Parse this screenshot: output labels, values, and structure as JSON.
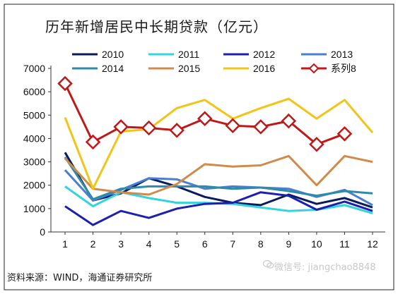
{
  "title": "历年新增居民中长期贷款（亿元）",
  "source": "资料来源：WIND，海通证券研究所",
  "watermark": "微信号: jiangchao8848",
  "colors": {
    "s2010": "#0a1a5c",
    "s2011": "#33d4e0",
    "s2012": "#1c20b0",
    "s2013": "#4a7fd0",
    "s2014": "#2f8aa8",
    "s2015": "#d08b4c",
    "s2016": "#f2c418",
    "s8": "#c01818"
  },
  "chart_data": {
    "type": "line",
    "categories": [
      "1",
      "2",
      "3",
      "4",
      "5",
      "6",
      "7",
      "8",
      "9",
      "10",
      "11",
      "12"
    ],
    "ylim": [
      0,
      7000
    ],
    "yticks": [
      "0",
      "1000",
      "2000",
      "3000",
      "4000",
      "5000",
      "6000",
      "7000"
    ],
    "series": [
      {
        "name": "2010",
        "color_key": "s2010",
        "values": [
          3400,
          1350,
          1650,
          2300,
          1950,
          1500,
          1250,
          1150,
          1600,
          1200,
          1450,
          1050
        ]
      },
      {
        "name": "2011",
        "color_key": "s2011",
        "values": [
          1950,
          1100,
          1700,
          1450,
          1250,
          1250,
          1200,
          1050,
          900,
          950,
          1150,
          800
        ]
      },
      {
        "name": "2012",
        "color_key": "s2012",
        "values": [
          1100,
          300,
          900,
          600,
          1000,
          1200,
          1250,
          1700,
          1550,
          950,
          1300,
          900
        ]
      },
      {
        "name": "2013",
        "color_key": "s2013",
        "values": [
          2650,
          1350,
          1800,
          2300,
          2250,
          1850,
          1950,
          1900,
          1850,
          1500,
          1800,
          1150
        ]
      },
      {
        "name": "2014",
        "color_key": "s2014",
        "values": [
          3200,
          1400,
          1850,
          1950,
          1950,
          1950,
          1850,
          1900,
          1750,
          1550,
          1750,
          1650
        ]
      },
      {
        "name": "2015",
        "color_key": "s2015",
        "values": [
          3150,
          1850,
          1700,
          1600,
          2050,
          2900,
          2800,
          2850,
          3250,
          2000,
          3250,
          3000
        ]
      },
      {
        "name": "2016",
        "color_key": "s2016",
        "values": [
          4900,
          1850,
          4300,
          4400,
          5300,
          5650,
          4850,
          5300,
          5700,
          4850,
          5650,
          4250
        ]
      },
      {
        "name": "系列8",
        "color_key": "s8",
        "marker": "diamond",
        "values": [
          6350,
          3850,
          4500,
          4450,
          4350,
          4850,
          4550,
          4500,
          4750,
          3750,
          4200,
          null
        ]
      }
    ]
  }
}
